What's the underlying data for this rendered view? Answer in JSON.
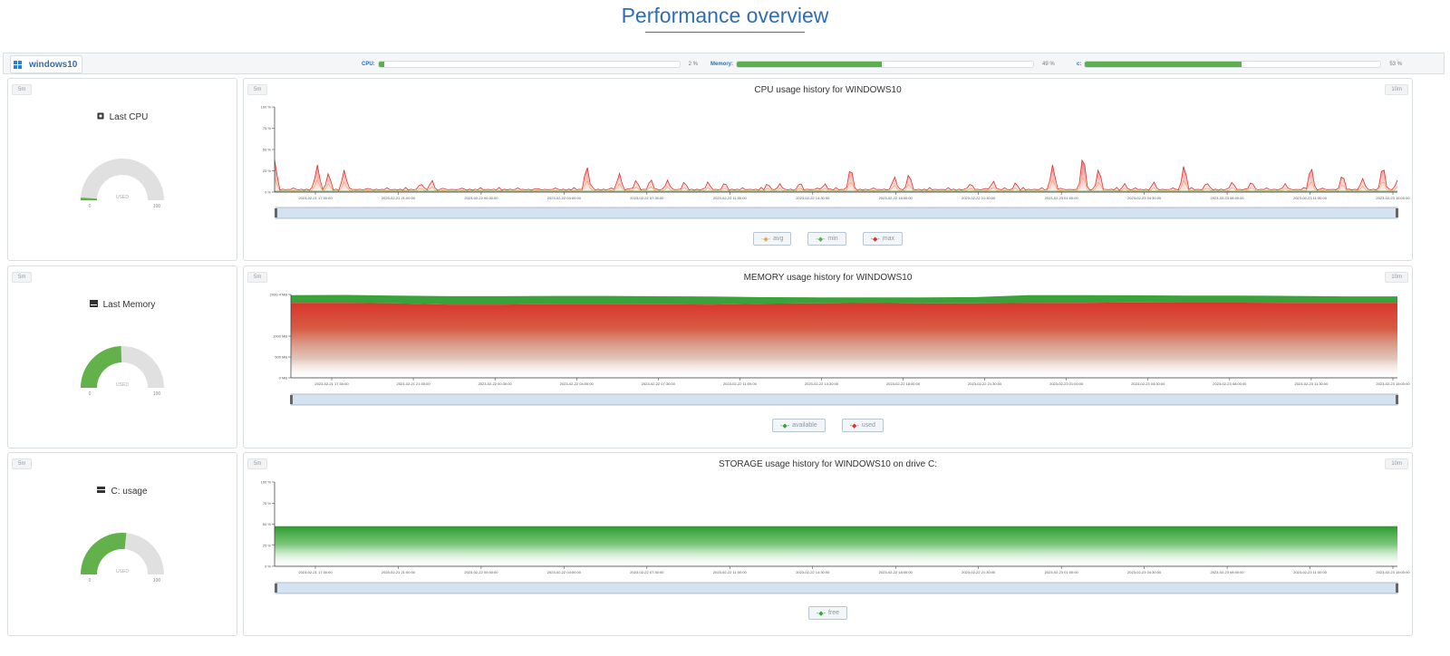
{
  "page": {
    "title": "Performance overview"
  },
  "host": {
    "name": "windows10",
    "icon": "windows-icon",
    "meters": [
      {
        "label": "CPU:",
        "value": 2,
        "text": "2 %"
      },
      {
        "label": "Memory:",
        "value": 49,
        "text": "49 %"
      },
      {
        "label": "c:",
        "value": 53,
        "text": "53 %"
      }
    ]
  },
  "gauges": [
    {
      "tag": "5m",
      "title": "Last CPU",
      "icon": "cpu-icon",
      "value": 2,
      "min": "0",
      "max": "100",
      "center": "USED"
    },
    {
      "tag": "5m",
      "title": "Last Memory",
      "icon": "memory-icon",
      "value": 49,
      "min": "0",
      "max": "100",
      "center": "USED"
    },
    {
      "tag": "5m",
      "title": "C: usage",
      "icon": "drive-icon",
      "value": 53,
      "min": "0",
      "max": "100",
      "center": "USED"
    }
  ],
  "chart_data": [
    {
      "type": "area",
      "title": "CPU usage history for WINDOWS10",
      "tag_left": "5m",
      "tag_right": "10m",
      "yticks": [
        "100 %",
        "75 %",
        "50 %",
        "25 %",
        "0 %"
      ],
      "ylim": [
        0,
        100
      ],
      "xticks": [
        "2023-02-21 17:30:00",
        "2023-02-21 21:00:00",
        "2023-02-22 00:30:00",
        "2023-02-22 04:00:00",
        "2023-02-22 07:30:00",
        "2023-02-22 11:00:00",
        "2023-02-22 14:30:00",
        "2023-02-22 18:00:00",
        "2023-02-22 21:30:00",
        "2023-02-23 01:00:00",
        "2023-02-23 04:30:00",
        "2023-02-23 08:00:00",
        "2023-02-23 11:30:00",
        "2023-02-23 15:00:00"
      ],
      "series": [
        {
          "name": "avg",
          "color": "#f0a44a"
        },
        {
          "name": "min",
          "color": "#5cae4e"
        },
        {
          "name": "max",
          "color": "#e0302f"
        }
      ],
      "peaks": [
        {
          "x": 0.0,
          "v": 38
        },
        {
          "x": 0.038,
          "v": 32
        },
        {
          "x": 0.048,
          "v": 22
        },
        {
          "x": 0.062,
          "v": 26
        },
        {
          "x": 0.13,
          "v": 10
        },
        {
          "x": 0.14,
          "v": 14
        },
        {
          "x": 0.278,
          "v": 30
        },
        {
          "x": 0.307,
          "v": 22
        },
        {
          "x": 0.322,
          "v": 14
        },
        {
          "x": 0.335,
          "v": 15
        },
        {
          "x": 0.35,
          "v": 14
        },
        {
          "x": 0.365,
          "v": 12
        },
        {
          "x": 0.386,
          "v": 12
        },
        {
          "x": 0.401,
          "v": 11
        },
        {
          "x": 0.439,
          "v": 10
        },
        {
          "x": 0.45,
          "v": 10
        },
        {
          "x": 0.468,
          "v": 11
        },
        {
          "x": 0.49,
          "v": 10
        },
        {
          "x": 0.513,
          "v": 28
        },
        {
          "x": 0.552,
          "v": 18
        },
        {
          "x": 0.565,
          "v": 21
        },
        {
          "x": 0.62,
          "v": 10
        },
        {
          "x": 0.64,
          "v": 13
        },
        {
          "x": 0.66,
          "v": 11
        },
        {
          "x": 0.693,
          "v": 32
        },
        {
          "x": 0.72,
          "v": 42
        },
        {
          "x": 0.734,
          "v": 27
        },
        {
          "x": 0.757,
          "v": 10
        },
        {
          "x": 0.783,
          "v": 12
        },
        {
          "x": 0.81,
          "v": 31
        },
        {
          "x": 0.83,
          "v": 11
        },
        {
          "x": 0.853,
          "v": 12
        },
        {
          "x": 0.87,
          "v": 12
        },
        {
          "x": 0.9,
          "v": 10
        },
        {
          "x": 0.923,
          "v": 29
        },
        {
          "x": 0.951,
          "v": 20
        },
        {
          "x": 0.969,
          "v": 16
        },
        {
          "x": 0.987,
          "v": 30
        },
        {
          "x": 1.0,
          "v": 14
        }
      ]
    },
    {
      "type": "area",
      "title": "MEMORY usage history for WINDOWS10",
      "tag_left": "5m",
      "tag_right": "10m",
      "yticks": [
        "2000.4 MB",
        "1000 MB",
        "500 MB",
        "0 MB"
      ],
      "ylim": [
        0,
        2000.4
      ],
      "xticks": [
        "2023-02-21 17:30:00",
        "2023-02-21 21:00:00",
        "2023-02-22 00:30:00",
        "2023-02-22 04:00:00",
        "2023-02-22 07:30:00",
        "2023-02-22 11:00:00",
        "2023-02-22 14:30:00",
        "2023-02-22 18:00:00",
        "2023-02-22 21:30:00",
        "2023-02-23 01:00:00",
        "2023-02-23 04:30:00",
        "2023-02-23 08:00:00",
        "2023-02-23 11:30:00",
        "2023-02-23 15:00:00"
      ],
      "series": [
        {
          "name": "available",
          "color": "#3aa23a"
        },
        {
          "name": "used",
          "color": "#d9342b"
        }
      ],
      "used_mb": [
        1800,
        1800,
        1790,
        1760,
        1760,
        1770,
        1770,
        1765,
        1760,
        1780,
        1790,
        1795,
        1790,
        1790,
        1795,
        1800,
        1810,
        1805,
        1805,
        1800,
        1800,
        1800
      ],
      "total_mb": [
        1985,
        1990,
        1975,
        1960,
        1960,
        1965,
        1965,
        1958,
        1950,
        1935,
        1930,
        1928,
        1930,
        1938,
        1985,
        1982,
        1980,
        1975,
        1975,
        1965,
        1955,
        1955
      ]
    },
    {
      "type": "area",
      "title": "STORAGE usage history for WINDOWS10 on drive C:",
      "tag_left": "5m",
      "tag_right": "10m",
      "yticks": [
        "100 %",
        "75 %",
        "50 %",
        "25 %",
        "0 %"
      ],
      "ylim": [
        0,
        100
      ],
      "xticks": [
        "2023-02-21 17:30:00",
        "2023-02-21 21:00:00",
        "2023-02-22 00:30:00",
        "2023-02-22 04:00:00",
        "2023-02-22 07:30:00",
        "2023-02-22 11:00:00",
        "2023-02-22 14:30:00",
        "2023-02-22 18:00:00",
        "2023-02-22 21:30:00",
        "2023-02-23 01:00:00",
        "2023-02-23 04:30:00",
        "2023-02-23 08:00:00",
        "2023-02-23 11:30:00",
        "2023-02-23 15:00:00"
      ],
      "series": [
        {
          "name": "free",
          "color": "#3aa23a"
        }
      ],
      "free_pct": 47
    }
  ]
}
